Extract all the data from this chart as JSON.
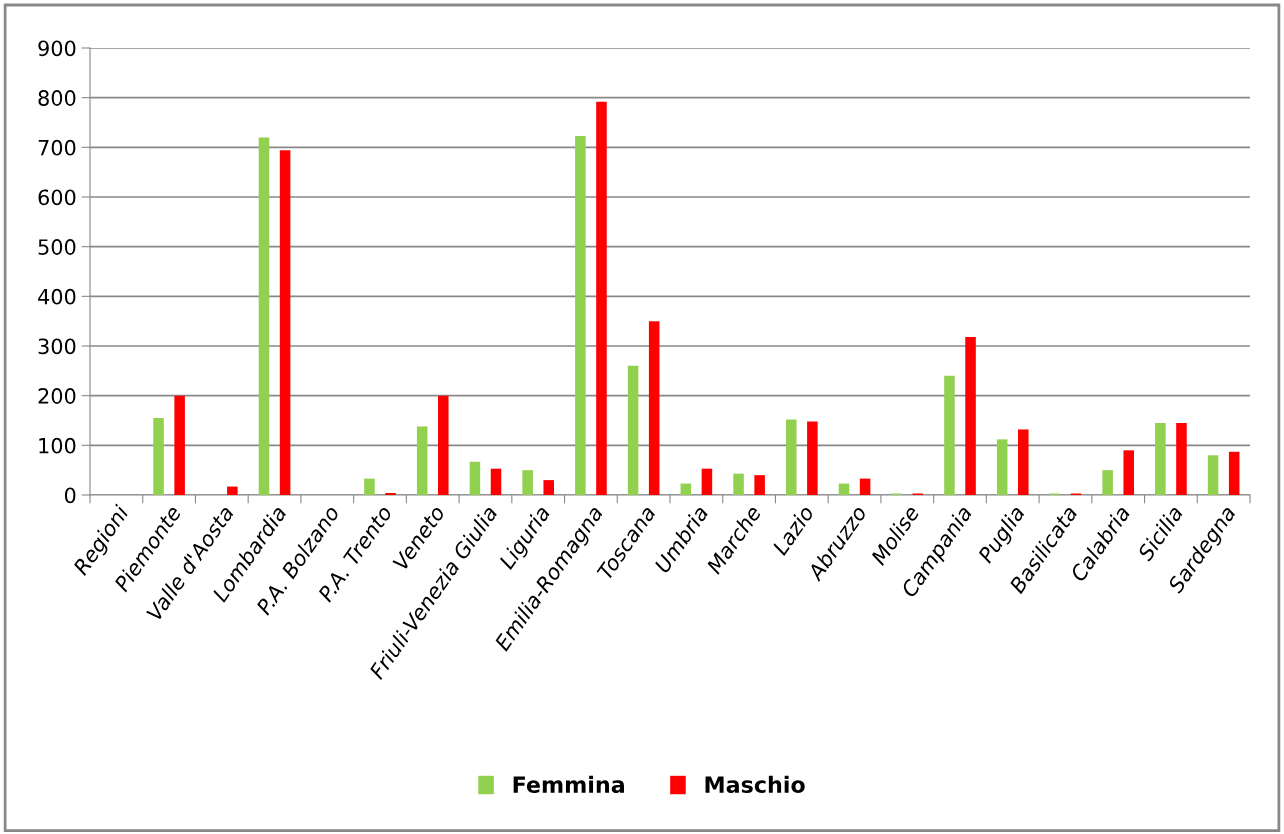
{
  "chart_data": {
    "type": "bar",
    "categories": [
      "Regioni",
      "Piemonte",
      "Valle d'Aosta",
      "Lombardia",
      "P.A. Bolzano",
      "P.A. Trento",
      "Veneto",
      "Friuli-Venezia Giulia",
      "Liguria",
      "Emilia-Romagna",
      "Toscana",
      "Umbria",
      "Marche",
      "Lazio",
      "Abruzzo",
      "Molise",
      "Campania",
      "Puglia",
      "Basilicata",
      "Calabria",
      "Sicilia",
      "Sardegna"
    ],
    "series": [
      {
        "name": "Femmina",
        "color": "#92d050",
        "values": [
          0,
          155,
          0,
          720,
          0,
          33,
          138,
          67,
          50,
          723,
          260,
          23,
          43,
          152,
          23,
          3,
          240,
          112,
          3,
          50,
          145,
          80
        ]
      },
      {
        "name": "Maschio",
        "color": "#ff0000",
        "values": [
          0,
          200,
          17,
          694,
          0,
          4,
          200,
          53,
          30,
          792,
          350,
          53,
          40,
          148,
          33,
          3,
          318,
          132,
          3,
          90,
          145,
          87
        ]
      }
    ],
    "ylim": [
      0,
      900
    ],
    "yticks": [
      0,
      100,
      200,
      300,
      400,
      500,
      600,
      700,
      800,
      900
    ],
    "grid": "y",
    "legend": "bottom"
  }
}
